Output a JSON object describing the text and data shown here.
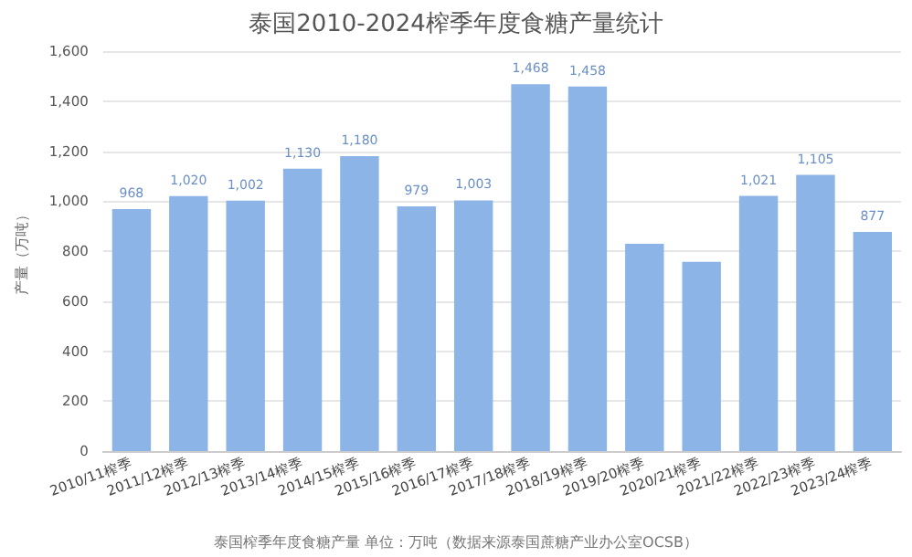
{
  "chart_data": {
    "type": "bar",
    "title": "泰国2010-2024榨季年度食糖产量统计",
    "ylabel": "产量（万吨）",
    "categories": [
      "2010/11榨季",
      "2011/12榨季",
      "2012/13榨季",
      "2013/14榨季",
      "2014/15榨季",
      "2015/16榨季",
      "2016/17榨季",
      "2017/18榨季",
      "2018/19榨季",
      "2019/20榨季",
      "2020/21榨季",
      "2021/22榨季",
      "2022/23榨季",
      "2023/24榨季"
    ],
    "values": [
      968,
      1020,
      1002,
      1130,
      1180,
      979,
      1003,
      1468,
      1458,
      829,
      757,
      1021,
      1105,
      877
    ],
    "value_labels": [
      "968",
      "1,020",
      "1,002",
      "1,130",
      "1,180",
      "979",
      "1,003",
      "1,468",
      "1,458",
      null,
      null,
      "1,021",
      "1,105",
      "877"
    ],
    "color": "#8cb4e6",
    "ylim": [
      0,
      1600
    ],
    "yticks": [
      0,
      200,
      400,
      600,
      800,
      {
        "value": 1000,
        "label": "1,000"
      },
      {
        "value": 1200,
        "label": "1,200"
      },
      {
        "value": 1400,
        "label": "1,400"
      },
      {
        "value": 1600,
        "label": "1,600"
      }
    ],
    "grid": "y",
    "annotations": [
      "泰国榨季年度食糖产量 单位：万吨（数据来源泰国蔗糖产业办公室OCSB）"
    ]
  }
}
